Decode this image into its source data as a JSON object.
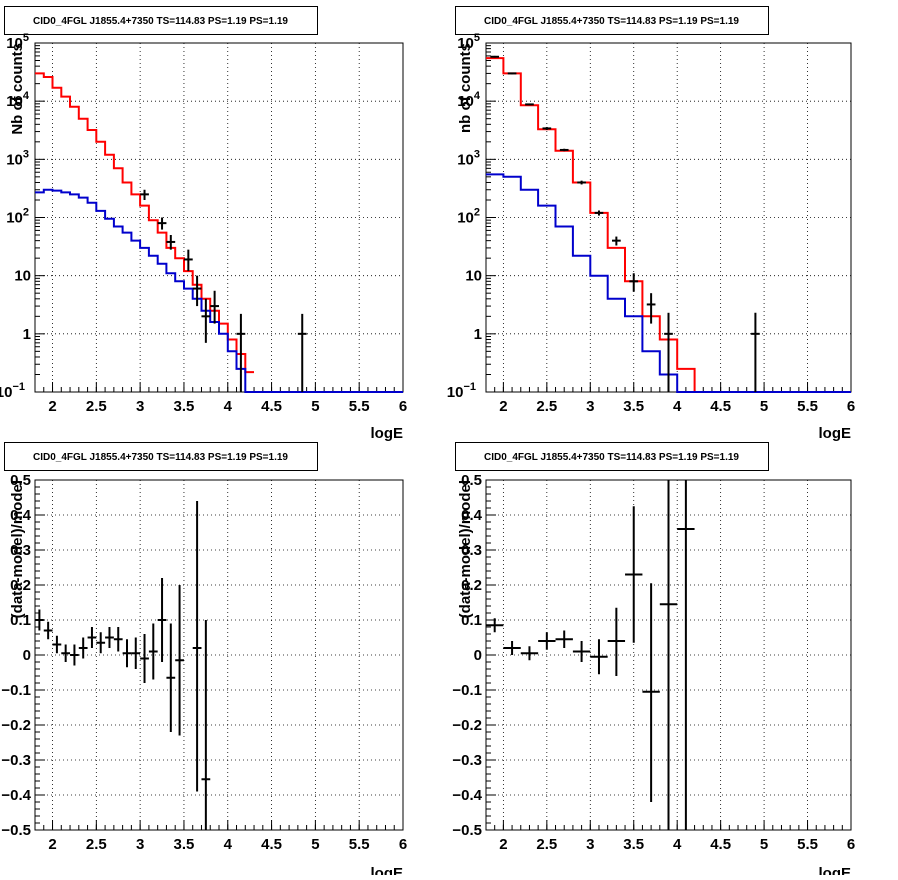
{
  "colors": {
    "data": "#000000",
    "model_total": "#ff0000",
    "model_source": "#0000cc",
    "grid": "#000000"
  },
  "chart_data": [
    {
      "type": "line",
      "title": "CID0_4FGL J1855.4+7350 TS=114.83 PS=1.19 PS=1.19",
      "xlabel": "logE",
      "ylabel": "Nb of counts",
      "xlim": [
        1.8,
        6
      ],
      "ylim": [
        0.1,
        100000
      ],
      "ylog": true,
      "grid": true,
      "x_ticks": [
        "2",
        "2.5",
        "3",
        "3.5",
        "4",
        "4.5",
        "5",
        "5.5",
        "6"
      ],
      "y_ticks": [
        {
          "v": 0.1,
          "base": "10",
          "exp": "−1"
        },
        {
          "v": 1,
          "label": "1"
        },
        {
          "v": 10,
          "label": "10"
        },
        {
          "v": 100,
          "base": "10",
          "exp": "2"
        },
        {
          "v": 1000,
          "base": "10",
          "exp": "3"
        },
        {
          "v": 10000,
          "base": "10",
          "exp": "4"
        },
        {
          "v": 100000,
          "base": "10",
          "exp": "5"
        }
      ],
      "series": [
        {
          "role": "model_total",
          "style": "step",
          "edges": [
            1.8,
            1.9,
            2.0,
            2.1,
            2.2,
            2.3,
            2.4,
            2.5,
            2.6,
            2.7,
            2.8,
            2.9,
            3.0,
            3.1,
            3.2,
            3.3,
            3.4,
            3.5,
            3.6,
            3.7,
            3.8,
            3.9,
            4.0,
            4.1,
            4.2,
            4.3
          ],
          "values": [
            30000,
            26000,
            17000,
            12000,
            8000,
            5000,
            3200,
            2000,
            1200,
            700,
            400,
            250,
            160,
            90,
            55,
            30,
            20,
            12,
            7,
            4,
            2.5,
            1.5,
            0.8,
            0.45,
            0.22
          ]
        },
        {
          "role": "model_source",
          "style": "step",
          "edges": [
            1.8,
            1.9,
            2.0,
            2.1,
            2.2,
            2.3,
            2.4,
            2.5,
            2.6,
            2.7,
            2.8,
            2.9,
            3.0,
            3.1,
            3.2,
            3.3,
            3.4,
            3.5,
            3.6,
            3.7,
            3.8,
            3.9,
            4.0,
            4.1,
            4.2,
            6.0
          ],
          "values": [
            270,
            300,
            290,
            270,
            250,
            220,
            180,
            130,
            95,
            70,
            55,
            40,
            30,
            22,
            16,
            11,
            8,
            6,
            4,
            2.5,
            1.6,
            1.0,
            0.5,
            0.25,
            0.1
          ]
        },
        {
          "role": "data",
          "style": "errorbar",
          "points": [
            {
              "x": 3.05,
              "y": 250,
              "lo": 200,
              "hi": 300
            },
            {
              "x": 3.25,
              "y": 80,
              "lo": 62,
              "hi": 100
            },
            {
              "x": 3.35,
              "y": 38,
              "lo": 28,
              "hi": 50
            },
            {
              "x": 3.55,
              "y": 19,
              "lo": 12,
              "hi": 28
            },
            {
              "x": 3.65,
              "y": 6,
              "lo": 3,
              "hi": 10
            },
            {
              "x": 3.75,
              "y": 2,
              "lo": 0.7,
              "hi": 4
            },
            {
              "x": 3.85,
              "y": 3,
              "lo": 1.5,
              "hi": 5.5
            },
            {
              "x": 4.15,
              "y": 1,
              "lo": 0.1,
              "hi": 2.2
            },
            {
              "x": 4.85,
              "y": 1,
              "lo": 0.1,
              "hi": 2.2
            }
          ]
        }
      ]
    },
    {
      "type": "line",
      "title": "CID0_4FGL J1855.4+7350 TS=114.83 PS=1.19 PS=1.19",
      "xlabel": "logE",
      "ylabel": "nb of counts",
      "xlim": [
        1.8,
        6
      ],
      "ylim": [
        0.1,
        100000
      ],
      "ylog": true,
      "grid": true,
      "x_ticks": [
        "2",
        "2.5",
        "3",
        "3.5",
        "4",
        "4.5",
        "5",
        "5.5",
        "6"
      ],
      "y_ticks": [
        {
          "v": 0.1,
          "base": "10",
          "exp": "−1"
        },
        {
          "v": 1,
          "label": "1"
        },
        {
          "v": 10,
          "label": "10"
        },
        {
          "v": 100,
          "base": "10",
          "exp": "2"
        },
        {
          "v": 1000,
          "base": "10",
          "exp": "3"
        },
        {
          "v": 10000,
          "base": "10",
          "exp": "4"
        },
        {
          "v": 100000,
          "base": "10",
          "exp": "5"
        }
      ],
      "series": [
        {
          "role": "model_total",
          "style": "step",
          "edges": [
            1.8,
            2.0,
            2.2,
            2.4,
            2.6,
            2.8,
            3.0,
            3.2,
            3.4,
            3.6,
            3.8,
            4.0,
            4.2,
            4.4
          ],
          "values": [
            55000,
            30000,
            8500,
            3300,
            1400,
            400,
            120,
            30,
            8,
            2,
            0.8,
            0.25,
            0.08
          ]
        },
        {
          "role": "model_source",
          "style": "step",
          "edges": [
            1.8,
            2.0,
            2.2,
            2.4,
            2.6,
            2.8,
            3.0,
            3.2,
            3.4,
            3.6,
            3.8,
            4.0,
            4.2,
            6.0
          ],
          "values": [
            550,
            500,
            300,
            160,
            70,
            22,
            10,
            4,
            2,
            0.5,
            0.2,
            0.05,
            0.1
          ]
        },
        {
          "role": "data",
          "style": "errorbar",
          "points": [
            {
              "x": 1.9,
              "y": 58000,
              "lo": 56000,
              "hi": 60000
            },
            {
              "x": 2.1,
              "y": 30000,
              "lo": 29000,
              "hi": 31000
            },
            {
              "x": 2.3,
              "y": 8800,
              "lo": 8500,
              "hi": 9100
            },
            {
              "x": 2.5,
              "y": 3400,
              "lo": 3200,
              "hi": 3600
            },
            {
              "x": 2.7,
              "y": 1450,
              "lo": 1380,
              "hi": 1520
            },
            {
              "x": 2.9,
              "y": 400,
              "lo": 370,
              "hi": 430
            },
            {
              "x": 3.1,
              "y": 120,
              "lo": 108,
              "hi": 132
            },
            {
              "x": 3.3,
              "y": 40,
              "lo": 33,
              "hi": 47
            },
            {
              "x": 3.5,
              "y": 8,
              "lo": 5.3,
              "hi": 11
            },
            {
              "x": 3.7,
              "y": 3.2,
              "lo": 1.5,
              "hi": 5
            },
            {
              "x": 3.9,
              "y": 1,
              "lo": 0.1,
              "hi": 2.3
            },
            {
              "x": 4.9,
              "y": 1,
              "lo": 0.1,
              "hi": 2.3
            }
          ]
        }
      ]
    },
    {
      "type": "scatter",
      "title": "CID0_4FGL J1855.4+7350 TS=114.83 PS=1.19 PS=1.19",
      "xlabel": "logE",
      "ylabel": "(data-model)/model",
      "xlim": [
        1.8,
        6
      ],
      "ylim": [
        -0.5,
        0.5
      ],
      "ylog": false,
      "grid": true,
      "x_ticks": [
        "2",
        "2.5",
        "3",
        "3.5",
        "4",
        "4.5",
        "5",
        "5.5",
        "6"
      ],
      "y_ticks": [
        {
          "v": -0.5,
          "label": "−0.5"
        },
        {
          "v": -0.4,
          "label": "−0.4"
        },
        {
          "v": -0.3,
          "label": "−0.3"
        },
        {
          "v": -0.2,
          "label": "−0.2"
        },
        {
          "v": -0.1,
          "label": "−0.1"
        },
        {
          "v": 0,
          "label": "0"
        },
        {
          "v": 0.1,
          "label": "0.1"
        },
        {
          "v": 0.2,
          "label": "0.2"
        },
        {
          "v": 0.3,
          "label": "0.3"
        },
        {
          "v": 0.4,
          "label": "0.4"
        },
        {
          "v": 0.5,
          "label": "0.5"
        }
      ],
      "series": [
        {
          "role": "data",
          "style": "errorbar",
          "binwidth": 0.1,
          "points": [
            {
              "x": 1.85,
              "y": 0.1,
              "lo": 0.07,
              "hi": 0.13
            },
            {
              "x": 1.95,
              "y": 0.07,
              "lo": 0.045,
              "hi": 0.095
            },
            {
              "x": 2.05,
              "y": 0.03,
              "lo": 0.005,
              "hi": 0.055
            },
            {
              "x": 2.15,
              "y": 0.005,
              "lo": -0.02,
              "hi": 0.03
            },
            {
              "x": 2.25,
              "y": 0.0,
              "lo": -0.03,
              "hi": 0.03
            },
            {
              "x": 2.35,
              "y": 0.02,
              "lo": -0.01,
              "hi": 0.05
            },
            {
              "x": 2.45,
              "y": 0.05,
              "lo": 0.02,
              "hi": 0.08
            },
            {
              "x": 2.55,
              "y": 0.035,
              "lo": 0.005,
              "hi": 0.065
            },
            {
              "x": 2.65,
              "y": 0.05,
              "lo": 0.02,
              "hi": 0.08
            },
            {
              "x": 2.75,
              "y": 0.045,
              "lo": 0.01,
              "hi": 0.08
            },
            {
              "x": 2.85,
              "y": 0.005,
              "lo": -0.035,
              "hi": 0.045
            },
            {
              "x": 2.95,
              "y": 0.005,
              "lo": -0.04,
              "hi": 0.05
            },
            {
              "x": 3.05,
              "y": -0.01,
              "lo": -0.08,
              "hi": 0.06
            },
            {
              "x": 3.15,
              "y": 0.01,
              "lo": -0.07,
              "hi": 0.09
            },
            {
              "x": 3.25,
              "y": 0.1,
              "lo": -0.02,
              "hi": 0.22
            },
            {
              "x": 3.35,
              "y": -0.065,
              "lo": -0.22,
              "hi": 0.09
            },
            {
              "x": 3.45,
              "y": -0.015,
              "lo": -0.23,
              "hi": 0.2
            },
            {
              "x": 3.65,
              "y": 0.02,
              "lo": -0.39,
              "hi": 0.44
            },
            {
              "x": 3.75,
              "y": -0.355,
              "lo": -0.5,
              "hi": 0.1
            }
          ]
        }
      ]
    },
    {
      "type": "scatter",
      "title": "CID0_4FGL J1855.4+7350 TS=114.83 PS=1.19 PS=1.19",
      "xlabel": "logE",
      "ylabel": "(data-model)/model",
      "xlim": [
        1.8,
        6
      ],
      "ylim": [
        -0.5,
        0.5
      ],
      "ylog": false,
      "grid": true,
      "x_ticks": [
        "2",
        "2.5",
        "3",
        "3.5",
        "4",
        "4.5",
        "5",
        "5.5",
        "6"
      ],
      "y_ticks": [
        {
          "v": -0.5,
          "label": "−0.5"
        },
        {
          "v": -0.4,
          "label": "−0.4"
        },
        {
          "v": -0.3,
          "label": "−0.3"
        },
        {
          "v": -0.2,
          "label": "−0.2"
        },
        {
          "v": -0.1,
          "label": "−0.1"
        },
        {
          "v": 0,
          "label": "0"
        },
        {
          "v": 0.1,
          "label": "0.1"
        },
        {
          "v": 0.2,
          "label": "0.2"
        },
        {
          "v": 0.3,
          "label": "0.3"
        },
        {
          "v": 0.4,
          "label": "0.4"
        },
        {
          "v": 0.5,
          "label": "0.5"
        }
      ],
      "series": [
        {
          "role": "data",
          "style": "errorbar",
          "binwidth": 0.2,
          "points": [
            {
              "x": 1.9,
              "y": 0.085,
              "lo": 0.065,
              "hi": 0.105
            },
            {
              "x": 2.1,
              "y": 0.02,
              "lo": 0.0,
              "hi": 0.04
            },
            {
              "x": 2.3,
              "y": 0.005,
              "lo": -0.015,
              "hi": 0.025
            },
            {
              "x": 2.5,
              "y": 0.04,
              "lo": 0.015,
              "hi": 0.065
            },
            {
              "x": 2.7,
              "y": 0.045,
              "lo": 0.02,
              "hi": 0.07
            },
            {
              "x": 2.9,
              "y": 0.01,
              "lo": -0.02,
              "hi": 0.04
            },
            {
              "x": 3.1,
              "y": -0.005,
              "lo": -0.055,
              "hi": 0.045
            },
            {
              "x": 3.3,
              "y": 0.04,
              "lo": -0.06,
              "hi": 0.135
            },
            {
              "x": 3.5,
              "y": 0.23,
              "lo": 0.035,
              "hi": 0.425
            },
            {
              "x": 3.7,
              "y": -0.105,
              "lo": -0.42,
              "hi": 0.205
            },
            {
              "x": 3.9,
              "y": 0.145,
              "lo": -0.5,
              "hi": 0.5
            },
            {
              "x": 4.1,
              "y": 0.36,
              "lo": -0.5,
              "hi": 0.5
            }
          ]
        }
      ]
    }
  ]
}
